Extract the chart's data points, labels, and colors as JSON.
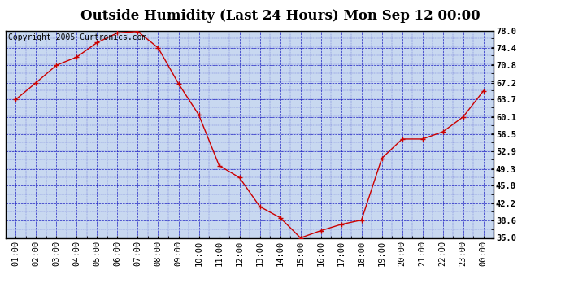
{
  "title": "Outside Humidity (Last 24 Hours) Mon Sep 12 00:00",
  "copyright": "Copyright 2005 Curtronics.com",
  "x_labels": [
    "01:00",
    "02:00",
    "03:00",
    "04:00",
    "05:00",
    "06:00",
    "07:00",
    "08:00",
    "09:00",
    "10:00",
    "11:00",
    "12:00",
    "13:00",
    "14:00",
    "15:00",
    "16:00",
    "17:00",
    "18:00",
    "19:00",
    "20:00",
    "21:00",
    "22:00",
    "23:00",
    "00:00"
  ],
  "x_values": [
    1,
    2,
    3,
    4,
    5,
    6,
    7,
    8,
    9,
    10,
    11,
    12,
    13,
    14,
    15,
    16,
    17,
    18,
    19,
    20,
    21,
    22,
    23,
    24
  ],
  "y_values": [
    63.7,
    67.2,
    70.8,
    72.5,
    75.5,
    77.5,
    77.8,
    74.4,
    67.0,
    60.5,
    50.0,
    47.5,
    41.5,
    39.2,
    35.0,
    36.5,
    37.8,
    38.7,
    51.5,
    55.5,
    55.5,
    57.0,
    60.1,
    65.5
  ],
  "ylim": [
    35.0,
    78.0
  ],
  "yticks": [
    35.0,
    38.6,
    42.2,
    45.8,
    49.3,
    52.9,
    56.5,
    60.1,
    63.7,
    67.2,
    70.8,
    74.4,
    78.0
  ],
  "line_color": "#cc0000",
  "marker_color": "#cc0000",
  "fig_bg_color": "#ffffff",
  "plot_bg": "#c8d8f0",
  "grid_color": "#0000bb",
  "title_fontsize": 12,
  "copyright_fontsize": 7,
  "tick_fontsize": 7.5,
  "border_color": "#000000"
}
